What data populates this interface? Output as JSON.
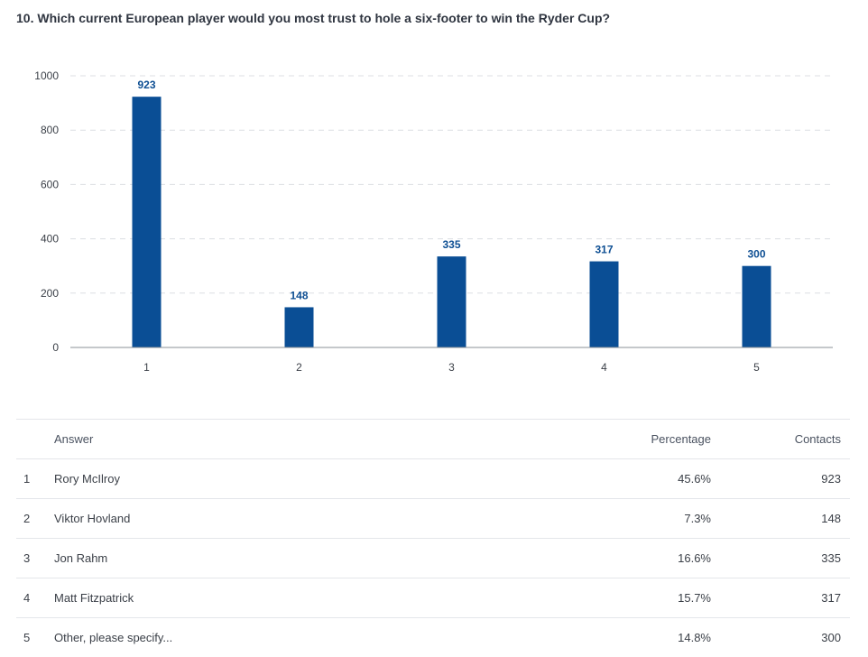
{
  "question": "10. Which current European player would you most trust to hole a six-footer to win the Ryder Cup?",
  "chart_data": {
    "type": "bar",
    "title": "",
    "xlabel": "",
    "ylabel": "",
    "categories": [
      "1",
      "2",
      "3",
      "4",
      "5"
    ],
    "values": [
      923,
      148,
      335,
      317,
      300
    ],
    "ylim": [
      0,
      1000
    ],
    "yticks": [
      0,
      200,
      400,
      600,
      800,
      1000
    ],
    "grid": true,
    "bar_color": "#0a4e95",
    "label_color": "#0e4f93"
  },
  "table": {
    "headers": {
      "answer": "Answer",
      "percentage": "Percentage",
      "contacts": "Contacts"
    },
    "rows": [
      {
        "num": "1",
        "answer": "Rory McIlroy",
        "percentage": "45.6%",
        "contacts": "923"
      },
      {
        "num": "2",
        "answer": "Viktor Hovland",
        "percentage": "7.3%",
        "contacts": "148"
      },
      {
        "num": "3",
        "answer": "Jon Rahm",
        "percentage": "16.6%",
        "contacts": "335"
      },
      {
        "num": "4",
        "answer": "Matt Fitzpatrick",
        "percentage": "15.7%",
        "contacts": "317"
      },
      {
        "num": "5",
        "answer": "Other, please specify...",
        "percentage": "14.8%",
        "contacts": "300"
      }
    ]
  }
}
